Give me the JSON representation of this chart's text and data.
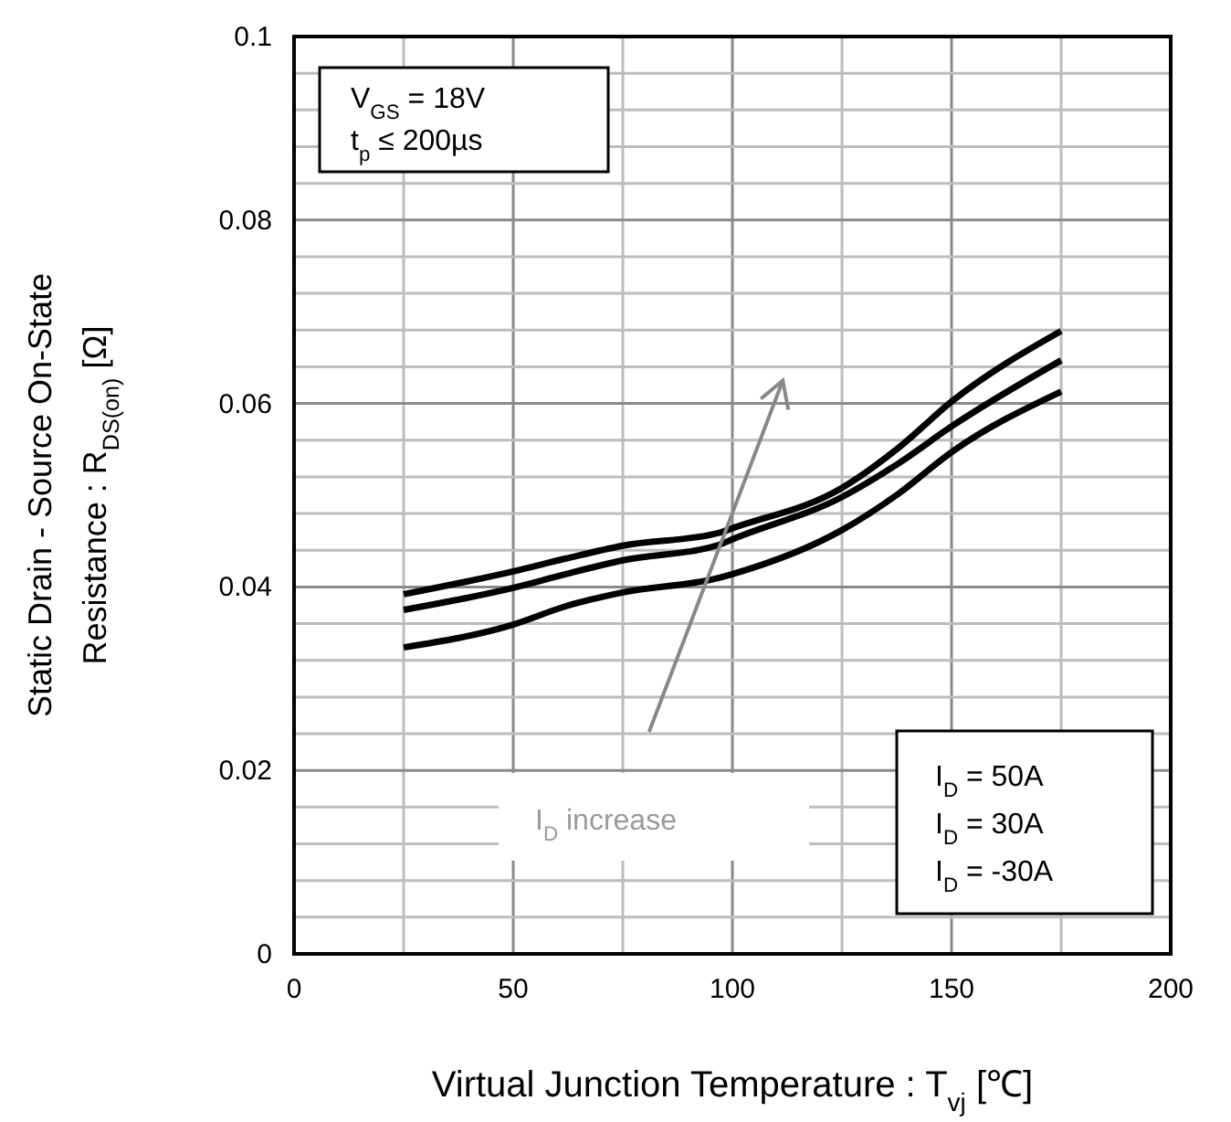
{
  "chart_data": {
    "type": "line",
    "xlabel": "Virtual Junction Temperature : T$_{vj}$ [℃]",
    "ylabel": "Static Drain - Source On-State\nResistance : R$_{DS(on)}$ [Ω]",
    "x": [
      25,
      50,
      62,
      75,
      97,
      100,
      125,
      138,
      150,
      175
    ],
    "series": [
      {
        "color": "#000000",
        "values": [
          0.0392,
          0.0417,
          0.0431,
          0.0445,
          0.0459,
          0.0464,
          0.0508,
          0.0552,
          0.0602,
          0.0679
        ]
      },
      {
        "color": "#000000",
        "values": [
          0.0375,
          0.0399,
          0.0414,
          0.0429,
          0.0446,
          0.0452,
          0.0498,
          0.0535,
          0.0575,
          0.0647
        ]
      },
      {
        "color": "#000000",
        "values": [
          0.0334,
          0.0359,
          0.0379,
          0.0394,
          0.041,
          0.0414,
          0.0462,
          0.0502,
          0.0547,
          0.0613
        ]
      }
    ],
    "xlim": [
      0,
      200
    ],
    "xticks": [
      0,
      {
        "value": 25,
        "label": null
      },
      50,
      {
        "value": 75,
        "label": null
      },
      100,
      {
        "value": 125,
        "label": null
      },
      150,
      {
        "value": 175,
        "label": null
      },
      200
    ],
    "ylim": [
      0,
      0.1
    ],
    "yticks": [
      0,
      {
        "value": 0.004,
        "label": null
      },
      {
        "value": 0.008,
        "label": null
      },
      {
        "value": 0.012,
        "label": null
      },
      {
        "value": 0.016,
        "label": null
      },
      0.02,
      {
        "value": 0.024,
        "label": null
      },
      {
        "value": 0.028,
        "label": null
      },
      {
        "value": 0.032,
        "label": null
      },
      {
        "value": 0.036,
        "label": null
      },
      0.04,
      {
        "value": 0.044,
        "label": null
      },
      {
        "value": 0.048,
        "label": null
      },
      {
        "value": 0.052,
        "label": null
      },
      {
        "value": 0.056,
        "label": null
      },
      0.06,
      {
        "value": 0.064,
        "label": null
      },
      {
        "value": 0.068,
        "label": null
      },
      {
        "value": 0.072,
        "label": null
      },
      {
        "value": 0.076,
        "label": null
      },
      0.08,
      {
        "value": 0.084,
        "label": null
      },
      {
        "value": 0.088,
        "label": null
      },
      {
        "value": 0.092,
        "label": null
      },
      {
        "value": 0.096,
        "label": null
      },
      0.1
    ],
    "grid": true,
    "line_style": "solid",
    "annotations": [
      "V$_{GS}$ = 18V",
      "t$_{p}$ ≤ 200µs",
      "I$_{D}$ increase",
      "I$_{D}$ = 50A",
      "I$_{D}$ = 30A",
      "I$_{D}$ = -30A"
    ]
  }
}
